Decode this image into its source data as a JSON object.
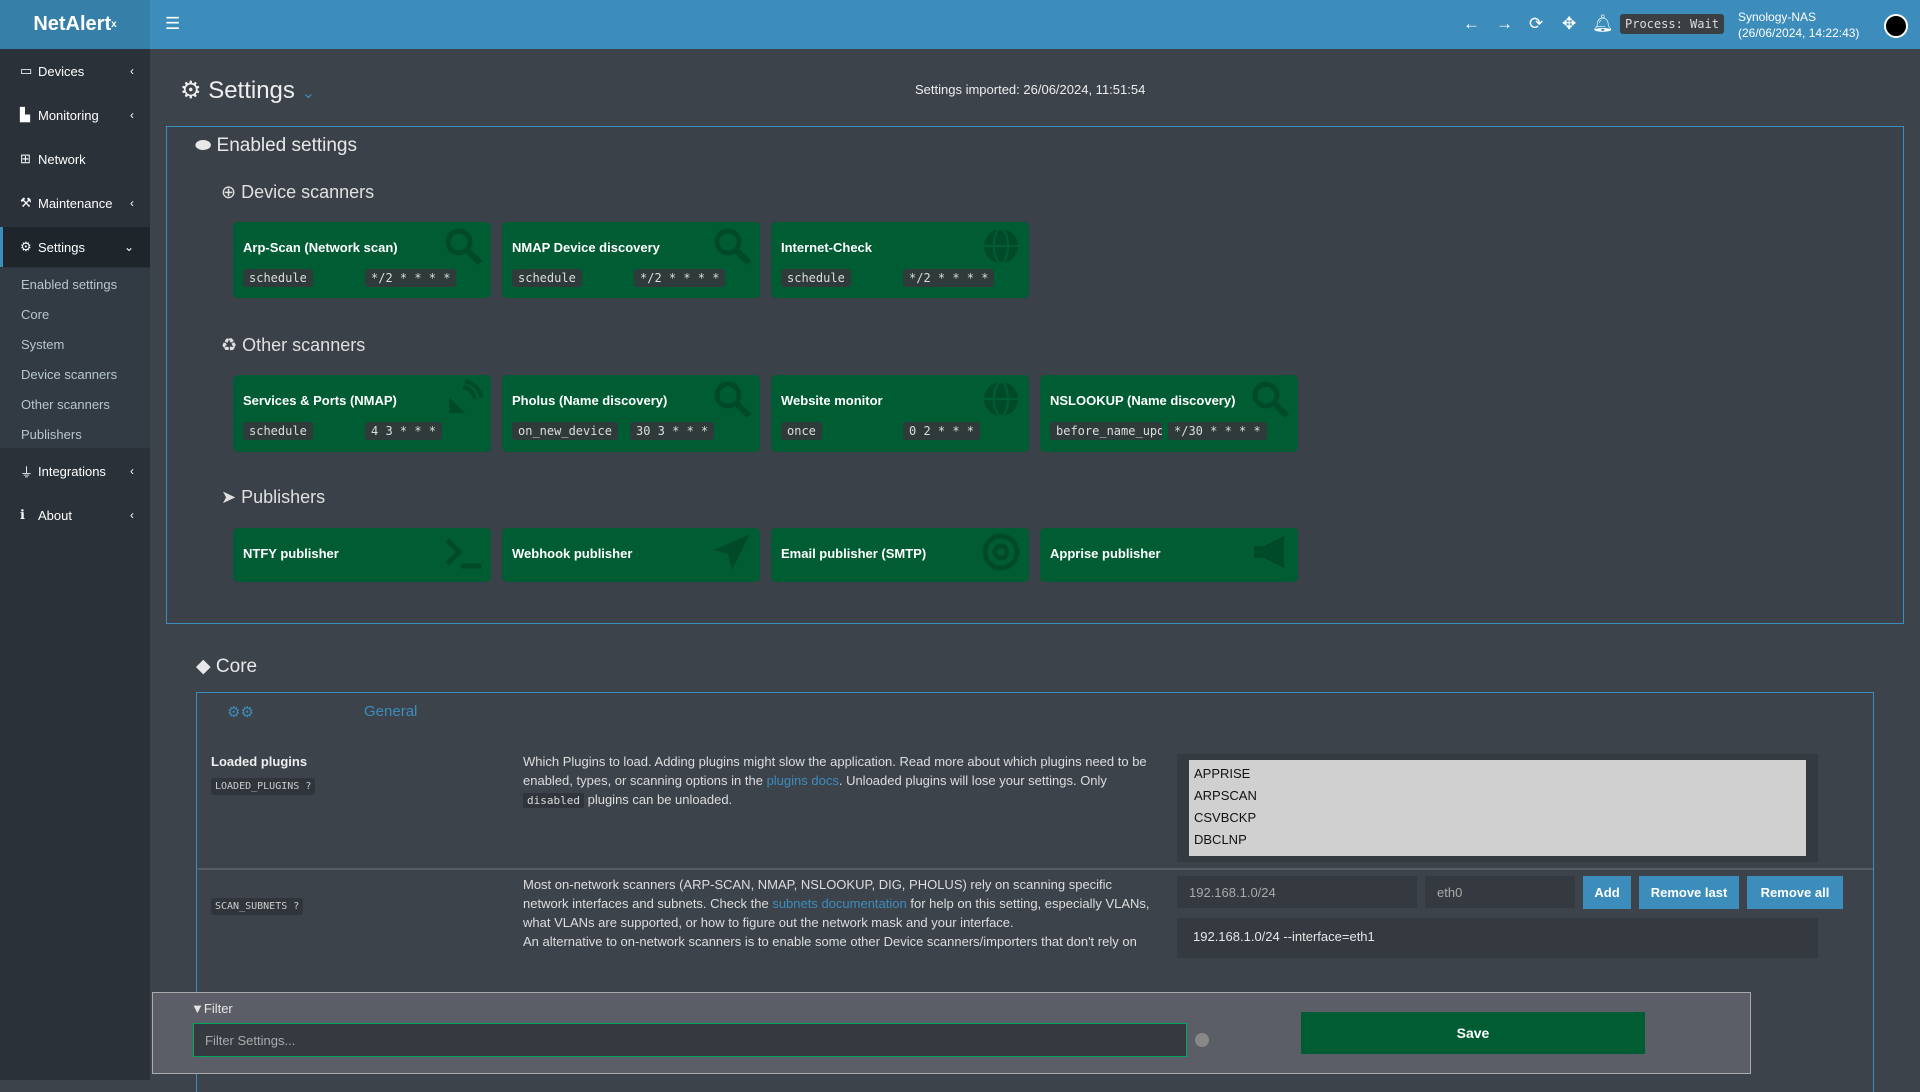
{
  "header": {
    "logo": "NetAlert",
    "logo_sup": "x",
    "process": "Process: Wait",
    "host": "Synology-NAS",
    "datetime": "(26/06/2024, 14:22:43)",
    "accent": "#3c8dbc"
  },
  "sidebar": {
    "items": [
      {
        "label": "Devices"
      },
      {
        "label": "Monitoring"
      },
      {
        "label": "Network"
      },
      {
        "label": "Maintenance"
      },
      {
        "label": "Settings"
      },
      {
        "label": "Integrations"
      },
      {
        "label": "About"
      }
    ],
    "submenu": [
      "Enabled settings",
      "Core",
      "System",
      "Device scanners",
      "Other scanners",
      "Publishers"
    ]
  },
  "page": {
    "title": "Settings",
    "imported": "Settings imported: 26/06/2024, 11:51:54"
  },
  "enabled": {
    "title": "Enabled settings",
    "device_scanners": {
      "title": "Device scanners",
      "cards": [
        {
          "name": "Arp-Scan (Network scan)",
          "tag1": "schedule",
          "tag2": "*/2 * * * *",
          "icon": "search-icon"
        },
        {
          "name": "NMAP Device discovery",
          "tag1": "schedule",
          "tag2": "*/2 * * * *",
          "icon": "search-icon"
        },
        {
          "name": "Internet-Check",
          "tag1": "schedule",
          "tag2": "*/2 * * * *",
          "icon": "globe-icon"
        }
      ]
    },
    "other_scanners": {
      "title": "Other scanners",
      "cards": [
        {
          "name": "Services & Ports (NMAP)",
          "tag1": "schedule",
          "tag2": "4 3 * * *",
          "icon": "satellite-icon"
        },
        {
          "name": "Pholus (Name discovery)",
          "tag1": "on_new_device",
          "tag2": "30 3 * * *",
          "icon": "search-icon"
        },
        {
          "name": "Website monitor",
          "tag1": "once",
          "tag2": "0 2 * * *",
          "icon": "globe-icon"
        },
        {
          "name": "NSLOOKUP (Name discovery)",
          "tag1": "before_name_updates",
          "tag2": "*/30 * * * *",
          "icon": "search-icon"
        }
      ]
    },
    "publishers": {
      "title": "Publishers",
      "cards": [
        {
          "name": "NTFY publisher",
          "icon": "terminal-icon"
        },
        {
          "name": "Webhook publisher",
          "icon": "send-icon"
        },
        {
          "name": "Email publisher (SMTP)",
          "icon": "at-icon"
        },
        {
          "name": "Apprise publisher",
          "icon": "megaphone-icon"
        }
      ]
    }
  },
  "core": {
    "title": "Core",
    "tab": "General",
    "loaded_plugins": {
      "label": "Loaded plugins",
      "code": "LOADED_PLUGINS",
      "desc_a": "Which Plugins to load. Adding plugins might slow the application. Read more about which plugins need to be enabled, types, or scanning options in the ",
      "link": "plugins docs",
      "desc_b": ". Unloaded plugins will lose your settings. Only ",
      "code_inline": "disabled",
      "desc_c": " plugins can be unloaded.",
      "options": [
        "APPRISE",
        "ARPSCAN",
        "CSVBCKP",
        "DBCLNP"
      ]
    },
    "scan_subnets": {
      "code": "SCAN_SUBNETS",
      "desc_a": "Most on-network scanners (ARP-SCAN, NMAP, NSLOOKUP, DIG, PHOLUS) rely on scanning specific network interfaces and subnets. Check the ",
      "link": "subnets documentation",
      "desc_b": " for help on this setting, especially VLANs, what VLANs are supported, or how to figure out the network mask and your interface.",
      "desc_d": "An alternative to on-network scanners is to enable some other Device scanners/importers that don't rely on",
      "subnet_placeholder": "192.168.1.0/24",
      "iface_placeholder": "eth0",
      "add": "Add",
      "entry": "192.168.1.0/24 --interface=eth1",
      "remove_last": "Remove last",
      "remove_all": "Remove all"
    }
  },
  "filter": {
    "label": "Filter",
    "placeholder": "Filter Settings...",
    "save": "Save"
  }
}
